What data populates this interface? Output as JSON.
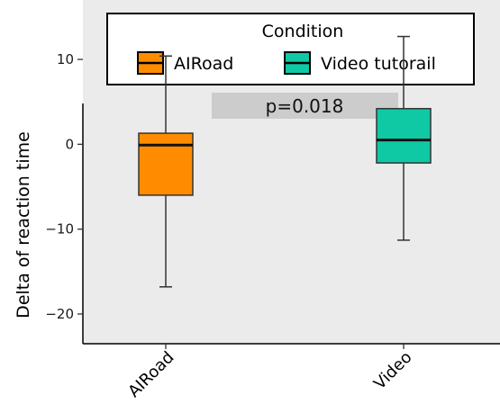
{
  "chart_data": {
    "type": "boxplot",
    "ylabel": "Delta of reaction time",
    "ylim": [
      -23.5,
      17
    ],
    "yticks": [
      -20,
      -10,
      0,
      10
    ],
    "categories": [
      "AIRoad",
      "Video"
    ],
    "boxes": [
      {
        "category": "AIRoad",
        "color": "#FF8C00",
        "min": -16.8,
        "q1": -6.0,
        "median": -0.1,
        "q3": 1.3,
        "max": 10.4
      },
      {
        "category": "Video",
        "color": "#0FC9A5",
        "min": -11.3,
        "q1": -2.2,
        "median": 0.5,
        "q3": 4.2,
        "max": 12.7
      }
    ],
    "legend": {
      "title": "Condition",
      "position": "top",
      "entries": [
        {
          "label": "AIRoad",
          "color": "#FF8C00"
        },
        {
          "label": "Video tutorail",
          "color": "#0FC9A5"
        }
      ]
    },
    "annotation": "p=0.018",
    "grid": false
  }
}
